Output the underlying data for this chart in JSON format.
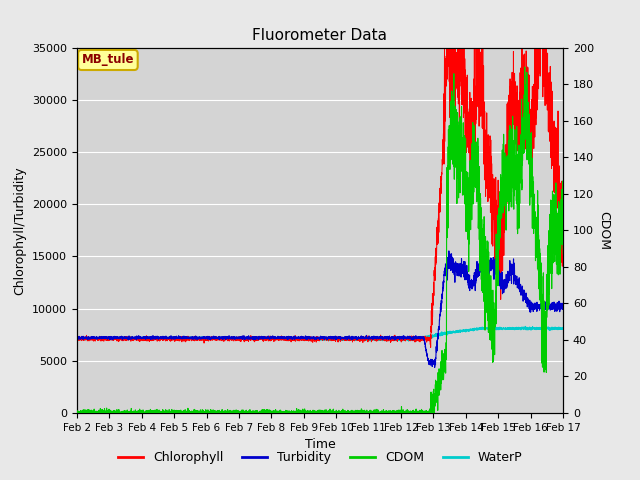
{
  "title": "Fluorometer Data",
  "xlabel": "Time",
  "ylabel_left": "Chlorophyll/Turbidity",
  "ylabel_right": "CDOM",
  "station_label": "MB_tule",
  "x_tick_labels": [
    "Feb 2",
    "Feb 3",
    "Feb 4",
    "Feb 5",
    "Feb 6",
    "Feb 7",
    "Feb 8",
    "Feb 9",
    "Feb 10",
    "Feb 11",
    "Feb 12",
    "Feb 13",
    "Feb 14",
    "Feb 15",
    "Feb 16",
    "Feb 17"
  ],
  "ylim_left": [
    0,
    35000
  ],
  "ylim_right": [
    0,
    200
  ],
  "yticks_left": [
    0,
    5000,
    10000,
    15000,
    20000,
    25000,
    30000,
    35000
  ],
  "yticks_right": [
    0,
    20,
    40,
    60,
    80,
    100,
    120,
    140,
    160,
    180,
    200
  ],
  "colors": {
    "Chlorophyll": "#ff0000",
    "Turbidity": "#0000cc",
    "CDOM": "#00cc00",
    "WaterP": "#00cccc"
  },
  "bg_color": "#e8e8e8",
  "plot_bg_color": "#d4d4d4",
  "legend_entries": [
    "Chlorophyll",
    "Turbidity",
    "CDOM",
    "WaterP"
  ]
}
